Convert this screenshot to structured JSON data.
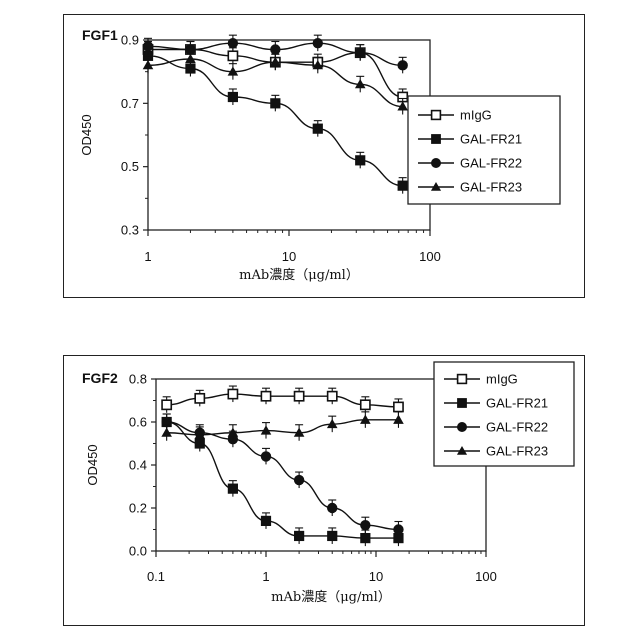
{
  "charts": [
    {
      "panel_title": "FGF1",
      "legend": [
        "mIgG",
        "GAL-FR21",
        "GAL-FR22",
        "GAL-FR23"
      ]
    },
    {
      "panel_title": "FGF2",
      "legend": [
        "mIgG",
        "GAL-FR21",
        "GAL-FR22",
        "GAL-FR23"
      ]
    }
  ],
  "chart_data": [
    {
      "type": "line",
      "title": "FGF1",
      "xlabel": "mAb濃度（μg/ml）",
      "ylabel": "OD450",
      "xscale": "log",
      "xlim": [
        1,
        100
      ],
      "ylim": [
        0.3,
        0.9
      ],
      "xticks": [
        1,
        10,
        100
      ],
      "xtick_labels": [
        "1",
        "10",
        "100"
      ],
      "yticks": [
        0.3,
        0.5,
        0.7,
        0.9
      ],
      "ytick_labels": [
        "0.3",
        "0.5",
        "0.7",
        "0.9"
      ],
      "grid": false,
      "legend_position": "right",
      "x": [
        1,
        2,
        4,
        8,
        16,
        32,
        64
      ],
      "series": [
        {
          "name": "mIgG",
          "marker": "open-square",
          "values": [
            0.87,
            0.87,
            0.85,
            0.83,
            0.83,
            0.86,
            0.72
          ]
        },
        {
          "name": "GAL-FR21",
          "marker": "filled-square",
          "values": [
            0.85,
            0.81,
            0.72,
            0.7,
            0.62,
            0.52,
            0.44
          ]
        },
        {
          "name": "GAL-FR22",
          "marker": "filled-circle",
          "values": [
            0.88,
            0.87,
            0.89,
            0.87,
            0.89,
            0.86,
            0.82
          ]
        },
        {
          "name": "GAL-FR23",
          "marker": "filled-triangle",
          "values": [
            0.82,
            0.84,
            0.8,
            0.83,
            0.82,
            0.76,
            0.69
          ]
        }
      ]
    },
    {
      "type": "line",
      "title": "FGF2",
      "xlabel": "mAb濃度（μg/ml）",
      "ylabel": "OD450",
      "xscale": "log",
      "xlim": [
        0.1,
        100
      ],
      "ylim": [
        0.0,
        0.8
      ],
      "xticks": [
        0.1,
        1,
        10,
        100
      ],
      "xtick_labels": [
        "0.1",
        "1",
        "10",
        "100"
      ],
      "yticks": [
        0.0,
        0.2,
        0.4,
        0.6,
        0.8
      ],
      "ytick_labels": [
        "0.0",
        "0.2",
        "0.4",
        "0.6",
        "0.8"
      ],
      "grid": false,
      "legend_position": "top-right",
      "x": [
        0.125,
        0.25,
        0.5,
        1,
        2,
        4,
        8,
        16
      ],
      "series": [
        {
          "name": "mIgG",
          "marker": "open-square",
          "values": [
            0.68,
            0.71,
            0.73,
            0.72,
            0.72,
            0.72,
            0.68,
            0.67
          ]
        },
        {
          "name": "GAL-FR21",
          "marker": "filled-square",
          "values": [
            0.6,
            0.5,
            0.29,
            0.14,
            0.07,
            0.07,
            0.06,
            0.06
          ]
        },
        {
          "name": "GAL-FR22",
          "marker": "filled-circle",
          "values": [
            0.6,
            0.55,
            0.52,
            0.44,
            0.33,
            0.2,
            0.12,
            0.1
          ]
        },
        {
          "name": "GAL-FR23",
          "marker": "filled-triangle",
          "values": [
            0.55,
            0.54,
            0.55,
            0.56,
            0.55,
            0.59,
            0.61,
            0.61
          ]
        }
      ]
    }
  ]
}
